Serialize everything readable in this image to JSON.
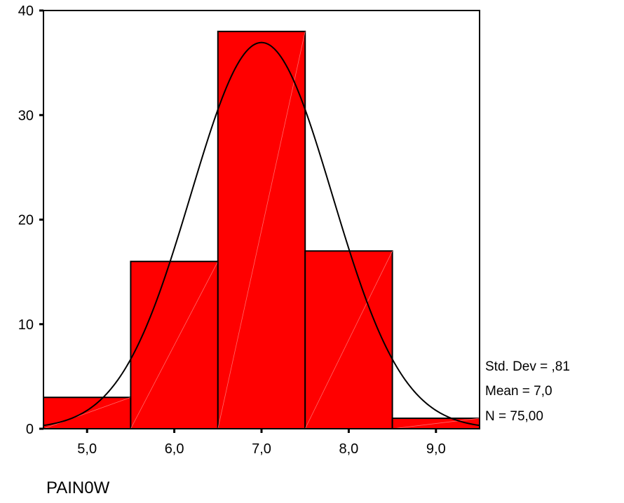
{
  "chart_data": {
    "type": "histogram",
    "xlabel": "PAIN0W",
    "ylabel": "",
    "ylim": [
      0,
      40
    ],
    "xlim": [
      4.5,
      9.5
    ],
    "yticks": [
      0,
      10,
      20,
      30,
      40
    ],
    "ytick_labels": [
      "0",
      "10",
      "20",
      "30",
      "40"
    ],
    "categories": [
      "5,0",
      "6,0",
      "7,0",
      "8,0",
      "9,0"
    ],
    "bin_centers": [
      5,
      6,
      7,
      8,
      9
    ],
    "values": [
      3,
      16,
      38,
      17,
      1
    ],
    "bar_color": "#ff0000",
    "normal_curve": {
      "mean": 7.0,
      "std": 0.81,
      "n": 75,
      "bin_width": 1
    },
    "stats": {
      "std_dev": "Std. Dev = ,81",
      "mean": "Mean = 7,0",
      "n": "N = 75,00"
    },
    "grid": false,
    "legend": "none"
  }
}
